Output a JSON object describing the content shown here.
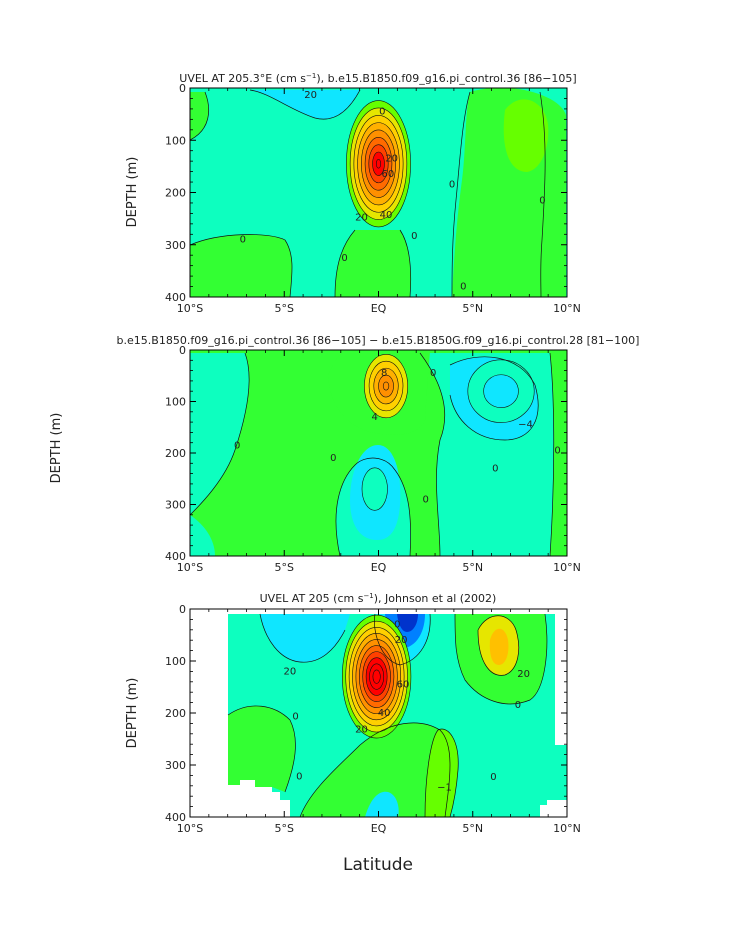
{
  "figure": {
    "ylabel_shared": "DEPTH (m)",
    "xlabel_shared": "Latitude"
  },
  "chart_data": [
    {
      "type": "heatmap",
      "subtype": "filled-contour",
      "title_parts": [
        "UVEL AT 205.3°E (cm s",
        "−1",
        "), b.e15.B1850.f09_g16.pi_control.36 [86−105]"
      ],
      "ylabel": "DEPTH (m)",
      "xlabel": "",
      "xlim": [
        -10,
        10
      ],
      "ylim": [
        0,
        400
      ],
      "xticks": [
        -10,
        -5,
        0,
        5,
        10
      ],
      "xtick_labels": [
        "10°S",
        "5°S",
        "EQ",
        "5°N",
        "10°N"
      ],
      "yticks": [
        0,
        100,
        200,
        300,
        400
      ],
      "ytick_labels": [
        "0",
        "100",
        "200",
        "300",
        "400"
      ],
      "background": "#0dffbf",
      "features": [
        {
          "kind": "blob",
          "name": "undercurrent-core",
          "center": [
            0.0,
            145
          ],
          "peak": 90,
          "lat_radius": 1.9,
          "depth_radius": 135
        }
      ],
      "contour_labels": [
        {
          "lat": -3.6,
          "depth": 13,
          "text": "20"
        },
        {
          "lat": 0.2,
          "depth": 45,
          "text": "0"
        },
        {
          "lat": 0.7,
          "depth": 135,
          "text": "20"
        },
        {
          "lat": 0.5,
          "depth": 165,
          "text": "60"
        },
        {
          "lat": 0.4,
          "depth": 243,
          "text": "40"
        },
        {
          "lat": -0.9,
          "depth": 248,
          "text": "20"
        },
        {
          "lat": 3.9,
          "depth": 185,
          "text": "0"
        },
        {
          "lat": 8.7,
          "depth": 215,
          "text": "0"
        },
        {
          "lat": -7.2,
          "depth": 290,
          "text": "0"
        },
        {
          "lat": -1.8,
          "depth": 325,
          "text": "0"
        },
        {
          "lat": 1.9,
          "depth": 283,
          "text": "0"
        },
        {
          "lat": 4.5,
          "depth": 380,
          "text": "0"
        }
      ]
    },
    {
      "type": "heatmap",
      "subtype": "filled-contour",
      "title_parts": [
        "b.e15.B1850.f09_g16.pi_control.36 [86−105] − b.e15.B1850G.f09_g16.pi_control.28 [81−100]"
      ],
      "ylabel": "DEPTH (m)",
      "xlabel": "",
      "xlim": [
        -10,
        10
      ],
      "ylim": [
        0,
        400
      ],
      "xticks": [
        -10,
        -5,
        0,
        5,
        10
      ],
      "xtick_labels": [
        "10°S",
        "5°S",
        "EQ",
        "5°N",
        "10°N"
      ],
      "yticks": [
        0,
        100,
        200,
        300,
        400
      ],
      "ytick_labels": [
        "0",
        "100",
        "200",
        "300",
        "400"
      ],
      "background": "#33ff33",
      "features": [
        {
          "kind": "blob",
          "name": "positive-anomaly",
          "center": [
            0.4,
            70
          ],
          "peak": 10,
          "lat_radius": 1.4,
          "depth_radius": 75
        },
        {
          "kind": "blob",
          "name": "negative-anomaly-north",
          "center": [
            6.5,
            80
          ],
          "peak": -5,
          "lat_radius": 2.6,
          "depth_radius": 90
        },
        {
          "kind": "blob",
          "name": "negative-anomaly-deep",
          "center": [
            -0.2,
            270
          ],
          "peak": -2,
          "lat_radius": 1.8,
          "depth_radius": 110
        }
      ],
      "contour_labels": [
        {
          "lat": 0.3,
          "depth": 45,
          "text": "8"
        },
        {
          "lat": -0.2,
          "depth": 130,
          "text": "4"
        },
        {
          "lat": 2.9,
          "depth": 45,
          "text": "0"
        },
        {
          "lat": 7.8,
          "depth": 145,
          "text": "−4"
        },
        {
          "lat": -7.5,
          "depth": 185,
          "text": "0"
        },
        {
          "lat": -2.4,
          "depth": 210,
          "text": "0"
        },
        {
          "lat": 6.2,
          "depth": 230,
          "text": "0"
        },
        {
          "lat": 9.5,
          "depth": 195,
          "text": "0"
        },
        {
          "lat": 2.5,
          "depth": 290,
          "text": "0"
        }
      ]
    },
    {
      "type": "heatmap",
      "subtype": "filled-contour",
      "title_parts": [
        "UVEL AT 205 (cm s",
        "−1",
        "), Johnson et al (2002)"
      ],
      "ylabel": "DEPTH (m)",
      "xlabel": "Latitude",
      "xlim": [
        -10,
        10
      ],
      "ylim": [
        0,
        400
      ],
      "xticks": [
        -10,
        -5,
        0,
        5,
        10
      ],
      "xtick_labels": [
        "10°S",
        "5°S",
        "EQ",
        "5°N",
        "10°N"
      ],
      "yticks": [
        0,
        100,
        200,
        300,
        400
      ],
      "ytick_labels": [
        "0",
        "100",
        "200",
        "300",
        "400"
      ],
      "background": "#33ff33",
      "data_extent_lat": [
        -7.8,
        9.5
      ],
      "features": [
        {
          "kind": "blob",
          "name": "undercurrent-core",
          "center": [
            -0.1,
            130
          ],
          "peak": 105,
          "lat_radius": 2.0,
          "depth_radius": 130
        },
        {
          "kind": "blob",
          "name": "westward-jet",
          "center": [
            1.9,
            20
          ],
          "peak": -70,
          "lat_radius": 1.2,
          "depth_radius": 45
        },
        {
          "kind": "blob",
          "name": "eastward-jet-north",
          "center": [
            7.2,
            70
          ],
          "peak": 45,
          "lat_radius": 1.2,
          "depth_radius": 70
        }
      ],
      "contour_labels": [
        {
          "lat": -4.7,
          "depth": 120,
          "text": "20"
        },
        {
          "lat": 1.0,
          "depth": 30,
          "text": "0"
        },
        {
          "lat": 1.2,
          "depth": 60,
          "text": "20"
        },
        {
          "lat": 1.3,
          "depth": 145,
          "text": "60"
        },
        {
          "lat": 0.3,
          "depth": 200,
          "text": "40"
        },
        {
          "lat": -0.9,
          "depth": 232,
          "text": "20"
        },
        {
          "lat": 7.7,
          "depth": 125,
          "text": "20"
        },
        {
          "lat": -4.4,
          "depth": 207,
          "text": "0"
        },
        {
          "lat": 7.4,
          "depth": 185,
          "text": "0"
        },
        {
          "lat": -4.2,
          "depth": 322,
          "text": "0"
        },
        {
          "lat": 3.5,
          "depth": 343,
          "text": "−1"
        },
        {
          "lat": 6.1,
          "depth": 323,
          "text": "0"
        }
      ]
    }
  ]
}
